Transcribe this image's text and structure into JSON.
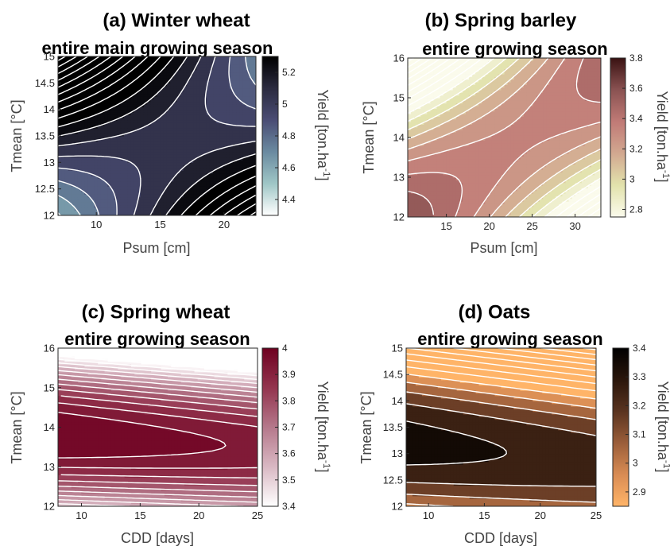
{
  "chart_data": [
    {
      "type": "heatmap",
      "subtype": "filled-contour",
      "panel_label": "(a)",
      "title": "Winter wheat",
      "subtitle": "entire main growing season",
      "xlabel": "Psum [cm]",
      "ylabel": "Tmean [°C]",
      "colorbar_label": "Yield [ton.ha",
      "colorbar_label_sup": "-1",
      "colorbar_label_end": "]",
      "xlim": [
        7,
        22.5
      ],
      "ylim": [
        12,
        15
      ],
      "xticks": [
        10,
        15,
        20
      ],
      "yticks": [
        12,
        12.5,
        13,
        13.5,
        14,
        14.5,
        15
      ],
      "ytick_labels": [
        "12",
        "12.5",
        "13",
        "13.5",
        "14",
        "14.5",
        "15"
      ],
      "clim": [
        4.3,
        5.3
      ],
      "cticks": [
        4.4,
        4.6,
        4.8,
        5,
        5.2
      ],
      "colormap": [
        "#ffffff",
        "#9fc6c6",
        "#6a8aa0",
        "#4a4c74",
        "#2b2b3f",
        "#000000"
      ],
      "surface": {
        "type": "saddle",
        "center": [
          16,
          13.4
        ],
        "base": 5.05,
        "a": 0.0012,
        "b": 0.1,
        "c": -0.06
      },
      "contour_step": 0.1
    },
    {
      "type": "heatmap",
      "subtype": "filled-contour",
      "panel_label": "(b)",
      "title": "Spring barley",
      "subtitle": "entire growing season",
      "xlabel": "Psum [cm]",
      "ylabel": "Tmean [°C]",
      "colorbar_label": "Yield [ton.ha",
      "colorbar_label_sup": "-1",
      "colorbar_label_end": "]",
      "xlim": [
        10.5,
        33
      ],
      "ylim": [
        12,
        16
      ],
      "xticks": [
        15,
        20,
        25,
        30
      ],
      "yticks": [
        12,
        13,
        14,
        15,
        16
      ],
      "ytick_labels": [
        "12",
        "13",
        "14",
        "15",
        "16"
      ],
      "clim": [
        2.75,
        3.8
      ],
      "cticks": [
        2.8,
        3,
        3.2,
        3.4,
        3.6,
        3.8
      ],
      "colormap": [
        "#fbfbec",
        "#e2e2ac",
        "#d2a890",
        "#c07a76",
        "#8a5252",
        "#3a1212"
      ],
      "surface": {
        "type": "saddle",
        "center": [
          23.5,
          14
        ],
        "base": 3.32,
        "a": -0.0014,
        "b": -0.08,
        "c": 0.032
      },
      "contour_step": 0.1
    },
    {
      "type": "heatmap",
      "subtype": "filled-contour",
      "panel_label": "(c)",
      "title": "Spring wheat",
      "subtitle": "entire growing season",
      "xlabel": "CDD [days]",
      "ylabel": "Tmean [°C]",
      "colorbar_label": "Yield [ton.ha",
      "colorbar_label_sup": "-1",
      "colorbar_label_end": "]",
      "xlim": [
        8,
        25
      ],
      "ylim": [
        12,
        16
      ],
      "xticks": [
        10,
        15,
        20,
        25
      ],
      "yticks": [
        12,
        13,
        14,
        15,
        16
      ],
      "ytick_labels": [
        "12",
        "13",
        "14",
        "15",
        "16"
      ],
      "clim": [
        3.4,
        4
      ],
      "cticks": [
        3.4,
        3.5,
        3.6,
        3.7,
        3.8,
        3.9,
        4
      ],
      "colormap": [
        "#ffffff",
        "#d9b8c3",
        "#b5788b",
        "#93344e",
        "#6e0020"
      ],
      "surface": {
        "type": "ridge",
        "ridge_intercept": 13.8,
        "ridge_slope": -0.018,
        "base": 4.0,
        "k": 0.15,
        "s": 0.0035,
        "x0": 8
      },
      "contour_step": 0.05
    },
    {
      "type": "heatmap",
      "subtype": "filled-contour",
      "panel_label": "(d)",
      "title": "Oats",
      "subtitle": "entire growing season",
      "xlabel": "CDD [days]",
      "ylabel": "Tmean [°C]",
      "colorbar_label": "Yield [ton.ha",
      "colorbar_label_sup": "-1",
      "colorbar_label_end": "]",
      "xlim": [
        8,
        25
      ],
      "ylim": [
        12,
        15
      ],
      "xticks": [
        10,
        15,
        20,
        25
      ],
      "yticks": [
        12,
        12.5,
        13,
        13.5,
        14,
        14.5,
        15
      ],
      "ytick_labels": [
        "12",
        "12.5",
        "13",
        "13.5",
        "14",
        "14.5",
        "15"
      ],
      "clim": [
        2.85,
        3.4
      ],
      "cticks": [
        2.9,
        3,
        3.1,
        3.2,
        3.3,
        3.4
      ],
      "colormap": [
        "#ffb468",
        "#d98c54",
        "#9b5e3a",
        "#5a3420",
        "#2a160b",
        "#000000"
      ],
      "surface": {
        "type": "ridge",
        "ridge_intercept": 13.2,
        "ridge_slope": -0.02,
        "base": 3.345,
        "k": 0.26,
        "s": 0.005,
        "x0": 8
      },
      "contour_step": 0.1
    }
  ]
}
